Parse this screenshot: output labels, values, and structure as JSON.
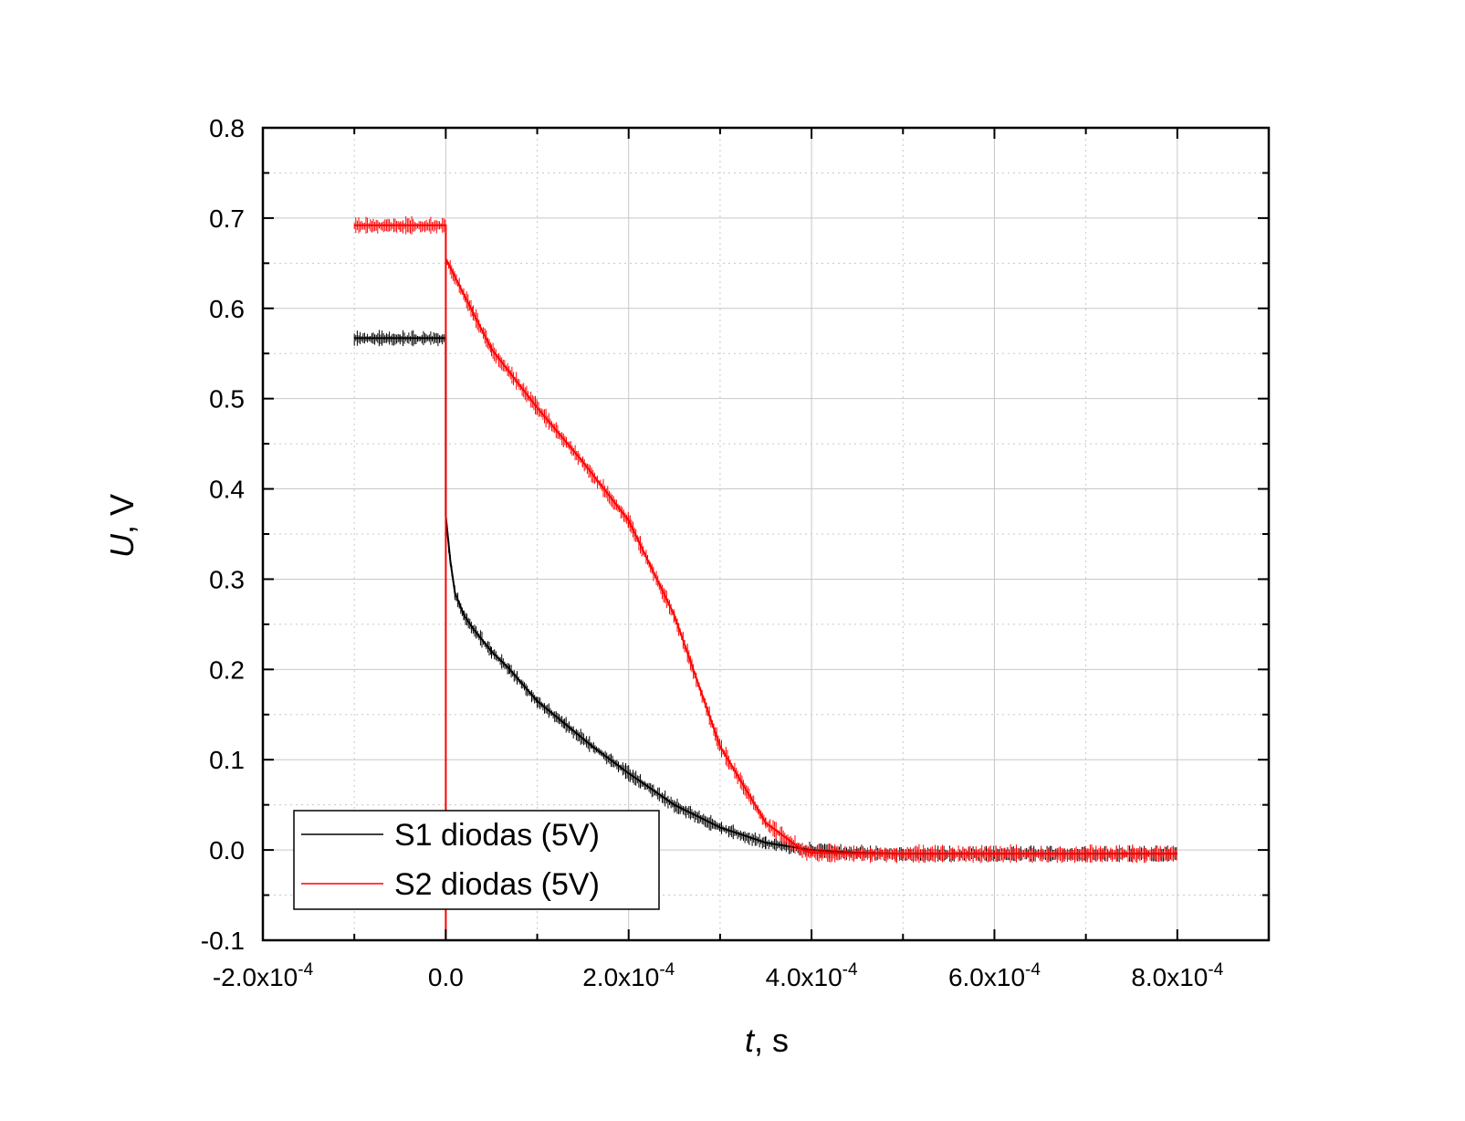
{
  "chart_data": {
    "type": "line",
    "xlabel": {
      "var": "t",
      "unit": ", s"
    },
    "ylabel": {
      "var": "U",
      "unit": ", V"
    },
    "xlim": [
      -0.0002,
      0.0009
    ],
    "ylim": [
      -0.1,
      0.8
    ],
    "grid": true,
    "legend_position": "bottom-left",
    "x_ticks": [
      {
        "value": -0.0002,
        "mant": "-2.0x10",
        "exp": "-4"
      },
      {
        "value": 0.0,
        "mant": "0.0",
        "exp": ""
      },
      {
        "value": 0.0002,
        "mant": "2.0x10",
        "exp": "-4"
      },
      {
        "value": 0.0004,
        "mant": "4.0x10",
        "exp": "-4"
      },
      {
        "value": 0.0006,
        "mant": "6.0x10",
        "exp": "-4"
      },
      {
        "value": 0.0008,
        "mant": "8.0x10",
        "exp": "-4"
      }
    ],
    "y_ticks": [
      "-0.1",
      "0.0",
      "0.1",
      "0.2",
      "0.3",
      "0.4",
      "0.5",
      "0.6",
      "0.7",
      "0.8"
    ],
    "series": [
      {
        "name": "S1 diodas (5V)",
        "color": "#000000",
        "x": [
          -0.0001,
          -5e-05,
          0.0,
          0.0,
          5e-06,
          1e-05,
          2e-05,
          3e-05,
          5e-05,
          7e-05,
          0.0001,
          0.00013,
          0.00016,
          0.0002,
          0.00025,
          0.0003,
          0.00035,
          0.0004,
          0.00045,
          0.0005,
          0.0006,
          0.0007,
          0.0008
        ],
        "y": [
          0.567,
          0.567,
          0.567,
          0.37,
          0.32,
          0.285,
          0.26,
          0.245,
          0.22,
          0.2,
          0.165,
          0.14,
          0.115,
          0.085,
          0.05,
          0.025,
          0.008,
          0.0,
          -0.003,
          -0.004,
          -0.004,
          -0.004,
          -0.004
        ],
        "noise": 0.006
      },
      {
        "name": "S2 diodas (5V)",
        "color": "#ff0000",
        "x": [
          -0.0001,
          -5e-05,
          0.0,
          0.0,
          0.0,
          1e-05,
          3e-05,
          5e-05,
          0.0001,
          0.00015,
          0.0002,
          0.00025,
          0.0003,
          0.00035,
          0.00039,
          0.0004,
          0.00045,
          0.0005,
          0.0006,
          0.0007,
          0.0008
        ],
        "y": [
          0.692,
          0.692,
          0.692,
          -0.1,
          0.655,
          0.635,
          0.595,
          0.555,
          0.49,
          0.43,
          0.365,
          0.26,
          0.115,
          0.03,
          0.0,
          -0.003,
          -0.004,
          -0.004,
          -0.004,
          -0.004,
          -0.004
        ],
        "noise": 0.007
      }
    ]
  }
}
